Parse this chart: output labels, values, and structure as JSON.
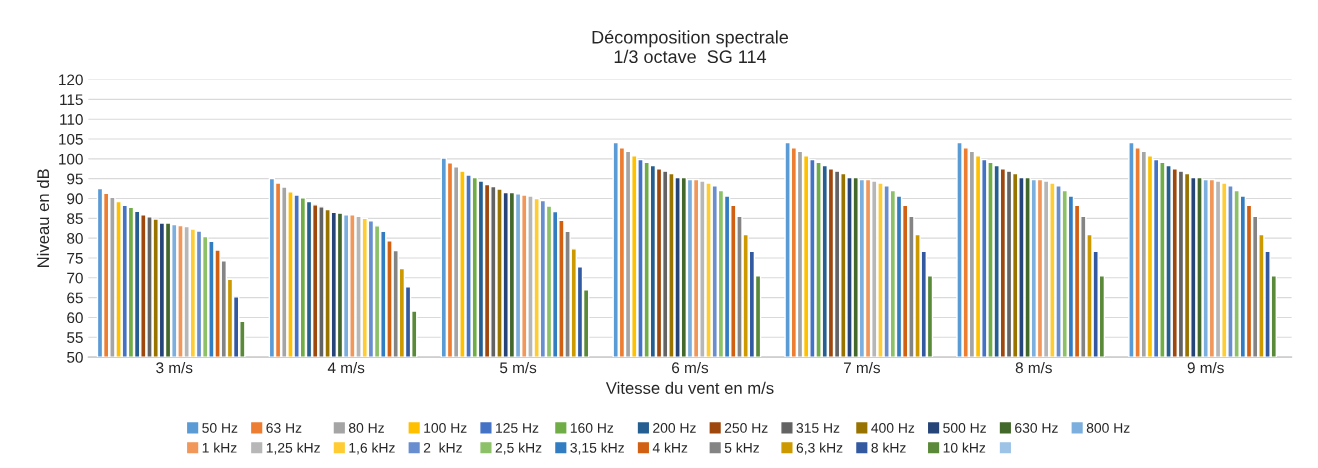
{
  "chart_data": {
    "type": "bar",
    "title": "Décomposition spectrale\n1/3 octave  SG 114",
    "xlabel": "Vitesse du vent en m/s",
    "ylabel": "Niveau en dB",
    "categories": [
      "3 m/s",
      "4 m/s",
      "5 m/s",
      "6 m/s",
      "7 m/s",
      "8 m/s",
      "9 m/s"
    ],
    "ylim": [
      50,
      120
    ],
    "yticks": [
      50,
      55,
      60,
      65,
      70,
      75,
      80,
      85,
      90,
      95,
      100,
      105,
      110,
      115,
      120
    ],
    "grid": "y",
    "legend": "bottom",
    "series": [
      {
        "name": "50 Hz",
        "color": "#5b9bd5",
        "values": [
          92.5,
          95,
          100.2,
          104.1,
          104.1,
          104.1,
          104.1
        ]
      },
      {
        "name": "63 Hz",
        "color": "#ed7d31",
        "values": [
          91.3,
          93.9,
          99,
          102.8,
          102.8,
          102.8,
          102.8
        ]
      },
      {
        "name": "80 Hz",
        "color": "#a5a5a5",
        "values": [
          90.3,
          92.9,
          98,
          101.9,
          101.9,
          101.9,
          101.9
        ]
      },
      {
        "name": "100 Hz",
        "color": "#ffc000",
        "values": [
          89.2,
          91.7,
          96.9,
          100.8,
          100.8,
          100.8,
          100.8
        ]
      },
      {
        "name": "125 Hz",
        "color": "#4472c4",
        "values": [
          88.3,
          90.9,
          95.9,
          99.8,
          99.8,
          99.8,
          99.8
        ]
      },
      {
        "name": "160 Hz",
        "color": "#70ad47",
        "values": [
          87.8,
          90.2,
          95.3,
          99.1,
          99.1,
          99.1,
          99.1
        ]
      },
      {
        "name": "200 Hz",
        "color": "#255e91",
        "values": [
          86.8,
          89.2,
          94.4,
          98.3,
          98.3,
          98.3,
          98.3
        ]
      },
      {
        "name": "250 Hz",
        "color": "#9e480e",
        "values": [
          85.9,
          88.4,
          93.5,
          97.5,
          97.5,
          97.5,
          97.5
        ]
      },
      {
        "name": "315 Hz",
        "color": "#636363",
        "values": [
          85.4,
          87.9,
          93,
          96.9,
          96.9,
          96.9,
          96.9
        ]
      },
      {
        "name": "400 Hz",
        "color": "#997300",
        "values": [
          84.8,
          87.2,
          92.4,
          96.3,
          96.3,
          96.3,
          96.3
        ]
      },
      {
        "name": "500 Hz",
        "color": "#264478",
        "values": [
          83.8,
          86.5,
          91.5,
          95.3,
          95.3,
          95.3,
          95.3
        ]
      },
      {
        "name": "630 Hz",
        "color": "#43682b",
        "values": [
          83.8,
          86.3,
          91.5,
          95.3,
          95.3,
          95.3,
          95.3
        ]
      },
      {
        "name": "800 Hz",
        "color": "#7cafdd",
        "values": [
          83.4,
          85.9,
          91.2,
          94.8,
          94.8,
          94.8,
          94.8
        ]
      },
      {
        "name": "1 kHz",
        "color": "#f1975a",
        "values": [
          83.2,
          85.9,
          90.9,
          94.8,
          94.8,
          94.8,
          94.8
        ]
      },
      {
        "name": "1,25 kHz",
        "color": "#b7b7b7",
        "values": [
          82.9,
          85.5,
          90.6,
          94.4,
          94.4,
          94.4,
          94.4
        ]
      },
      {
        "name": "1,6 kHz",
        "color": "#ffcd33",
        "values": [
          82.3,
          85,
          90,
          93.9,
          93.9,
          93.9,
          93.9
        ]
      },
      {
        "name": "2  kHz",
        "color": "#698ed0",
        "values": [
          81.8,
          84.4,
          89.5,
          93.2,
          93.2,
          93.2,
          93.2
        ]
      },
      {
        "name": "2,5 kHz",
        "color": "#8cc168",
        "values": [
          80.4,
          83.1,
          88.1,
          92,
          92,
          92,
          92
        ]
      },
      {
        "name": "3,15 kHz",
        "color": "#327dc2",
        "values": [
          79.2,
          81.7,
          86.7,
          90.6,
          90.6,
          90.6,
          90.6
        ]
      },
      {
        "name": "4 kHz",
        "color": "#d26012",
        "values": [
          77,
          79.3,
          84.5,
          88.3,
          88.3,
          88.3,
          88.3
        ]
      },
      {
        "name": "5 kHz",
        "color": "#848484",
        "values": [
          74.3,
          76.9,
          81.7,
          85.5,
          85.5,
          85.5,
          85.5
        ]
      },
      {
        "name": "6,3 kHz",
        "color": "#cc9a00",
        "values": [
          69.6,
          72.3,
          77.3,
          80.9,
          80.9,
          80.9,
          80.9
        ]
      },
      {
        "name": "8 kHz",
        "color": "#335aa1",
        "values": [
          65.2,
          67.7,
          72.8,
          76.7,
          76.7,
          76.7,
          76.7
        ]
      },
      {
        "name": "10 kHz",
        "color": "#5a8a39",
        "values": [
          59,
          61.6,
          67,
          70.5,
          70.5,
          70.5,
          70.5
        ]
      },
      {
        "color": "#9dc3e6",
        "values": [
          null,
          null,
          null,
          null,
          null,
          null,
          null
        ]
      }
    ]
  }
}
